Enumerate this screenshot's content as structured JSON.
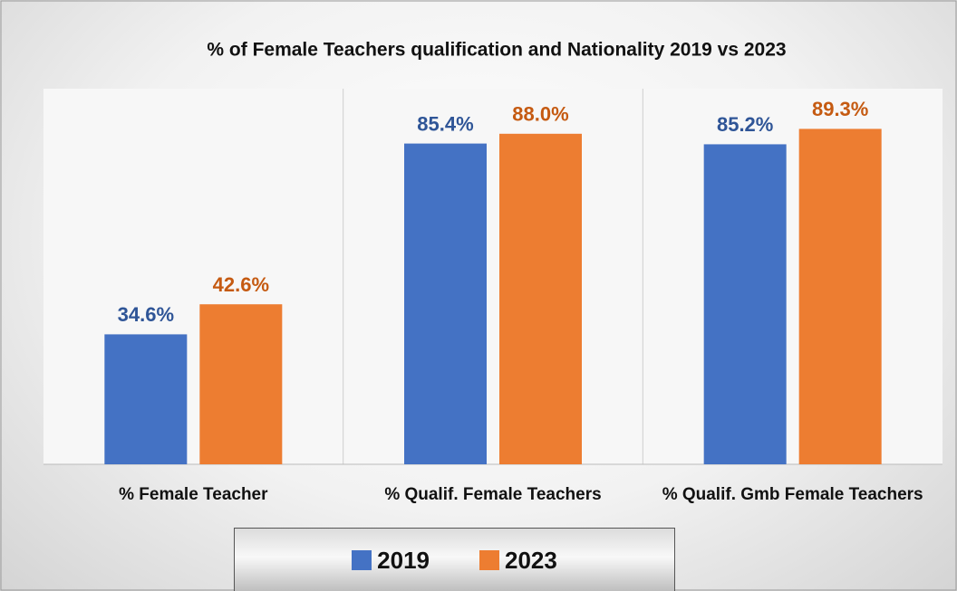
{
  "chart_data": {
    "type": "bar",
    "title": "% of Female Teachers qualification and Nationality 2019 vs 2023",
    "categories": [
      "% Female Teacher",
      "% Qualif. Female Teachers",
      "% Qualif. Gmb Female Teachers"
    ],
    "series": [
      {
        "name": "2019",
        "color": "#4472c4",
        "label_color": "#2f5597",
        "values": [
          34.6,
          85.4,
          85.2
        ],
        "value_labels": [
          "34.6%",
          "85.4%",
          "85.2%"
        ]
      },
      {
        "name": "2023",
        "color": "#ed7d31",
        "label_color": "#c55a11",
        "values": [
          42.6,
          88.0,
          89.3
        ],
        "value_labels": [
          "42.6%",
          "88.0%",
          "89.3%"
        ]
      }
    ],
    "ylim": [
      0,
      100
    ]
  }
}
